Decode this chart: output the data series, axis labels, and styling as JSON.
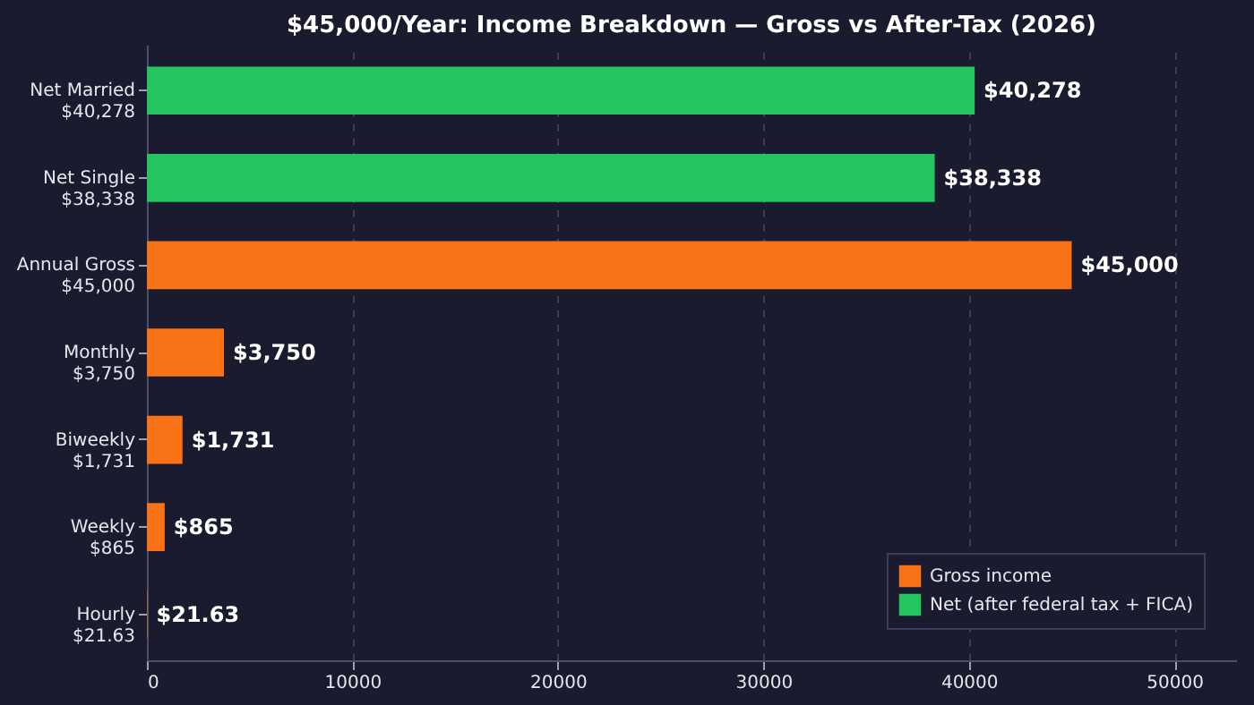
{
  "chart_data": {
    "type": "bar",
    "orientation": "horizontal",
    "title": "$45,000/Year: Income Breakdown — Gross vs After-Tax (2026)",
    "categories": [
      "Net Married\n$40,278",
      "Net Single\n$38,338",
      "Annual Gross\n$45,000",
      "Monthly\n$3,750",
      "Biweekly\n$1,731",
      "Weekly\n$865",
      "Hourly\n$21.63"
    ],
    "series": [
      {
        "name": "Gross income",
        "color": "#f97316",
        "values": [
          null,
          null,
          45000,
          3750,
          1731,
          865,
          21.63
        ],
        "value_labels": [
          null,
          null,
          "$45,000",
          "$3,750",
          "$1,731",
          "$865",
          "$21.63"
        ]
      },
      {
        "name": "Net (after federal tax + FICA)",
        "color": "#22c55e",
        "values": [
          40278,
          38338,
          null,
          null,
          null,
          null,
          null
        ],
        "value_labels": [
          "$40,278",
          "$38,338",
          null,
          null,
          null,
          null,
          null
        ]
      }
    ],
    "xlim": [
      0,
      53000
    ],
    "xticks": [
      0,
      10000,
      20000,
      30000,
      40000,
      50000
    ],
    "grid": "x",
    "legend": "bottom right"
  }
}
